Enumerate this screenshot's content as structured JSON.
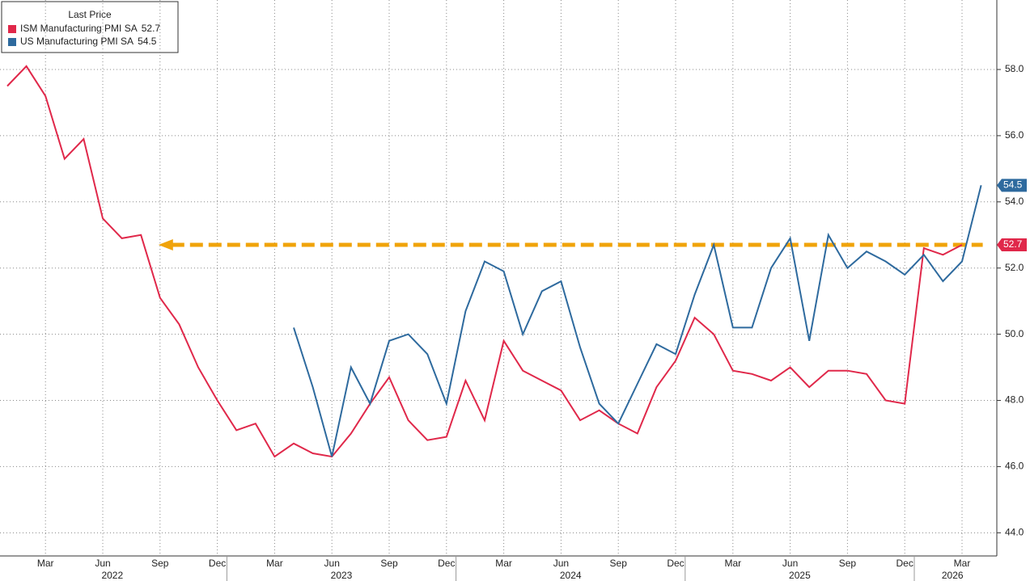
{
  "chart_data": {
    "type": "line",
    "legend_title": "Last Price",
    "categories": [
      null,
      null,
      "Mar",
      null,
      null,
      "Jun",
      null,
      null,
      "Sep",
      null,
      null,
      "Dec",
      null,
      null,
      "Mar",
      null,
      null,
      "Jun",
      null,
      null,
      "Sep",
      null,
      null,
      "Dec",
      null,
      null,
      "Mar",
      null,
      null,
      "Jun",
      null,
      null,
      "Sep",
      null,
      null,
      "Dec",
      null,
      null,
      "Mar",
      null,
      null,
      "Jun",
      null,
      null,
      "Sep",
      null,
      null,
      "Dec",
      null,
      null,
      "Mar",
      null
    ],
    "year_labels": [
      "2022",
      "2023",
      "2024",
      "2025",
      "2026"
    ],
    "series": [
      {
        "name": "ISM Manufacturing PMI SA",
        "color": "#e0284a",
        "values": [
          57.5,
          58.1,
          57.2,
          55.3,
          55.9,
          53.5,
          52.9,
          53.0,
          51.1,
          50.3,
          49.0,
          48.0,
          47.1,
          47.3,
          46.3,
          46.7,
          46.4,
          46.3,
          47.0,
          47.9,
          48.7,
          47.4,
          46.8,
          46.9,
          48.6,
          47.4,
          49.8,
          48.9,
          48.6,
          48.3,
          47.4,
          47.7,
          47.3,
          47.0,
          48.4,
          49.2,
          50.5,
          50.0,
          48.9,
          48.8,
          48.6,
          49.0,
          48.4,
          48.9,
          48.9,
          48.8,
          48.0,
          47.9,
          52.6,
          52.4,
          52.7,
          null
        ]
      },
      {
        "name": "US Manufacturing PMI SA",
        "color": "#2e6a9e",
        "values": [
          null,
          null,
          null,
          null,
          null,
          null,
          null,
          null,
          null,
          null,
          null,
          null,
          null,
          null,
          null,
          50.2,
          48.4,
          46.3,
          49.0,
          47.9,
          49.8,
          50.0,
          49.4,
          47.9,
          50.7,
          52.2,
          51.9,
          50.0,
          51.3,
          51.6,
          49.6,
          47.9,
          47.3,
          48.5,
          49.7,
          49.4,
          51.2,
          52.7,
          50.2,
          50.2,
          52.0,
          52.9,
          49.8,
          53.0,
          52.0,
          52.5,
          52.2,
          51.8,
          52.4,
          51.6,
          52.2,
          54.5
        ]
      }
    ],
    "reference_line": {
      "value": 52.7,
      "color": "#f0a30a"
    },
    "ylim": [
      43.3,
      60.1
    ],
    "yticks": [
      {
        "value": 44,
        "label": "44.0"
      },
      {
        "value": 46,
        "label": "46.0"
      },
      {
        "value": 48,
        "label": "48.0"
      },
      {
        "value": 50,
        "label": "50.0"
      },
      {
        "value": 52,
        "label": "52.0"
      },
      {
        "value": 54,
        "label": "54.0"
      },
      {
        "value": 56,
        "label": "56.0"
      },
      {
        "value": 58,
        "label": "58.0"
      }
    ],
    "grid": true,
    "legend_position": "top-left"
  }
}
